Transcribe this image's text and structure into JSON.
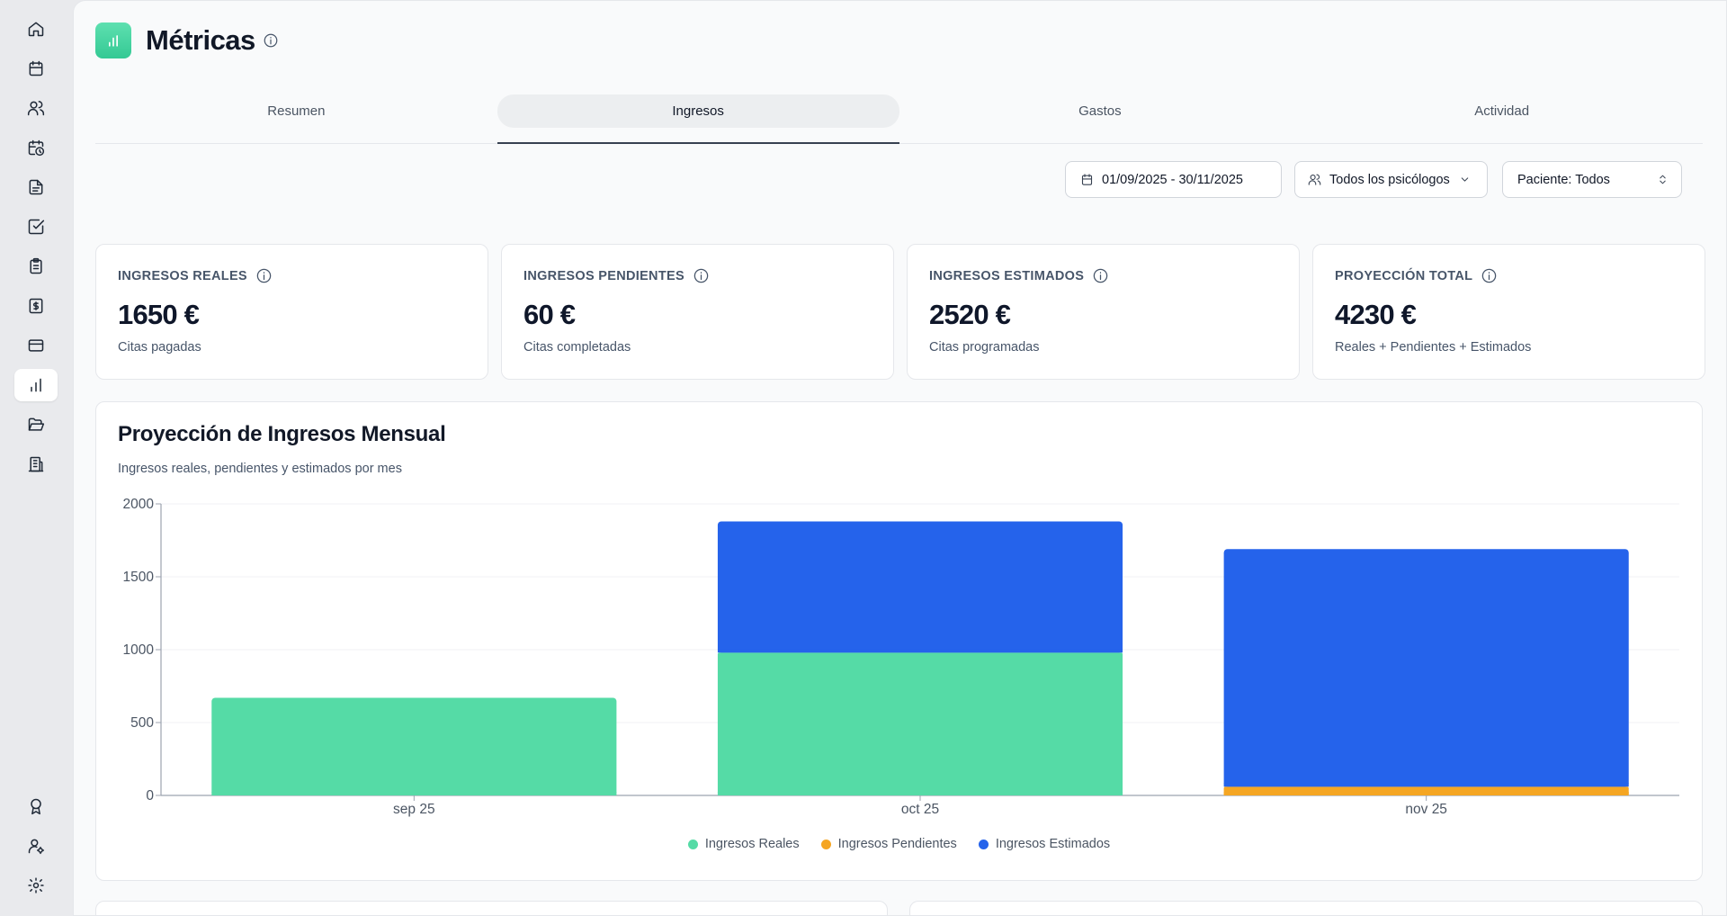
{
  "page": {
    "title": "Métricas"
  },
  "sidebar": {
    "items": [
      {
        "icon": "home-icon"
      },
      {
        "icon": "calendar-icon"
      },
      {
        "icon": "users-icon"
      },
      {
        "icon": "calendar-clock-icon"
      },
      {
        "icon": "document-icon"
      },
      {
        "icon": "checkbox-icon"
      },
      {
        "icon": "clipboard-icon"
      },
      {
        "icon": "dollar-icon"
      },
      {
        "icon": "credit-card-icon"
      },
      {
        "icon": "bar-chart-icon",
        "active": true
      },
      {
        "icon": "folder-open-icon"
      },
      {
        "icon": "building-icon"
      }
    ],
    "bottom_items": [
      {
        "icon": "award-icon"
      },
      {
        "icon": "user-settings-icon"
      },
      {
        "icon": "gear-icon"
      }
    ]
  },
  "tabs": [
    {
      "label": "Resumen",
      "active": false
    },
    {
      "label": "Ingresos",
      "active": true
    },
    {
      "label": "Gastos",
      "active": false
    },
    {
      "label": "Actividad",
      "active": false
    }
  ],
  "filters": {
    "date_range": "01/09/2025 - 30/11/2025",
    "psychologist": "Todos los psicólogos",
    "patient": "Paciente: Todos"
  },
  "stats": [
    {
      "label": "Ingresos Reales",
      "value": "1650 €",
      "sub": "Citas pagadas"
    },
    {
      "label": "Ingresos Pendientes",
      "value": "60 €",
      "sub": "Citas completadas"
    },
    {
      "label": "Ingresos Estimados",
      "value": "2520 €",
      "sub": "Citas programadas"
    },
    {
      "label": "Proyección Total",
      "value": "4230 €",
      "sub": "Reales + Pendientes + Estimados"
    }
  ],
  "chart": {
    "title": "Proyección de Ingresos Mensual",
    "subtitle": "Ingresos reales, pendientes y estimados por mes"
  },
  "chart_data": {
    "type": "bar",
    "stacked": true,
    "categories": [
      "sep 25",
      "oct 25",
      "nov 25"
    ],
    "series": [
      {
        "name": "Ingresos Reales",
        "color": "#55dba6",
        "values": [
          670,
          980,
          0
        ]
      },
      {
        "name": "Ingresos Pendientes",
        "color": "#f5a623",
        "values": [
          0,
          0,
          60
        ]
      },
      {
        "name": "Ingresos Estimados",
        "color": "#2563eb",
        "values": [
          0,
          900,
          1630
        ]
      }
    ],
    "ylim": [
      0,
      2000
    ],
    "yticks": [
      0,
      500,
      1000,
      1500,
      2000
    ],
    "grid": true,
    "legend_position": "bottom"
  },
  "colors": {
    "accent_green": "#55dba6",
    "accent_orange": "#f5a623",
    "accent_blue": "#2563eb"
  }
}
